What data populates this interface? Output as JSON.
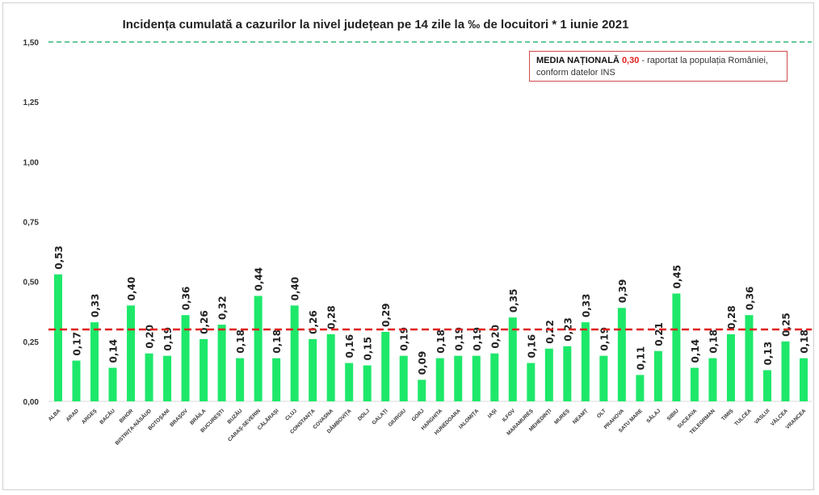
{
  "chart_data": {
    "type": "bar",
    "title": "Incidența cumulată a cazurilor la nivel județean pe 14 zile la ‰ de locuitori *  1 iunie 2021",
    "xlabel": "",
    "ylabel": "",
    "ylim": [
      0,
      1.5
    ],
    "yticks": [
      "0,00",
      "0,25",
      "0,50",
      "0,75",
      "1,00",
      "1,25",
      "1,50"
    ],
    "grid": false,
    "categories": [
      "ALBA",
      "ARAD",
      "ARGEȘ",
      "BACĂU",
      "BIHOR",
      "BISTRIȚA-NĂSĂUD",
      "BOTOȘANI",
      "BRAȘOV",
      "BRĂILA",
      "BUCUREȘTI",
      "BUZĂU",
      "CARAȘ-SEVERIN",
      "CĂLĂRAȘI",
      "CLUJ",
      "CONSTANȚA",
      "COVASNA",
      "DÂMBOVIȚA",
      "DOLJ",
      "GALAȚI",
      "GIURGIU",
      "GORJ",
      "HARGHITA",
      "HUNEDOARA",
      "IALOMIȚA",
      "IAȘI",
      "ILFOV",
      "MARAMUREȘ",
      "MEHEDINȚI",
      "MUREȘ",
      "NEAMȚ",
      "OLT",
      "PRAHOVA",
      "SATU MARE",
      "SĂLAJ",
      "SIBIU",
      "SUCEAVA",
      "TELEORMAN",
      "TIMIȘ",
      "TULCEA",
      "VASLUI",
      "VÂLCEA",
      "VRANCEA"
    ],
    "values": [
      0.53,
      0.17,
      0.33,
      0.14,
      0.4,
      0.2,
      0.19,
      0.36,
      0.26,
      0.32,
      0.18,
      0.44,
      0.18,
      0.4,
      0.26,
      0.28,
      0.16,
      0.15,
      0.29,
      0.19,
      0.09,
      0.18,
      0.19,
      0.19,
      0.2,
      0.35,
      0.16,
      0.22,
      0.23,
      0.33,
      0.19,
      0.39,
      0.11,
      0.21,
      0.45,
      0.14,
      0.18,
      0.28,
      0.36,
      0.13,
      0.25,
      0.18
    ],
    "reference_lines": [
      {
        "value": 0.3,
        "style": "dashed",
        "color": "#e02020"
      },
      {
        "value": 1.5,
        "style": "dashed",
        "color": "#2eb87a"
      }
    ],
    "bar_color": "#1ee86a",
    "legend": {
      "label": "MEDIA NAȚIONALĂ",
      "value": "0,30",
      "text": "- raportat la populația României,",
      "text2": "conform datelor INS",
      "placement": "top-right"
    }
  }
}
